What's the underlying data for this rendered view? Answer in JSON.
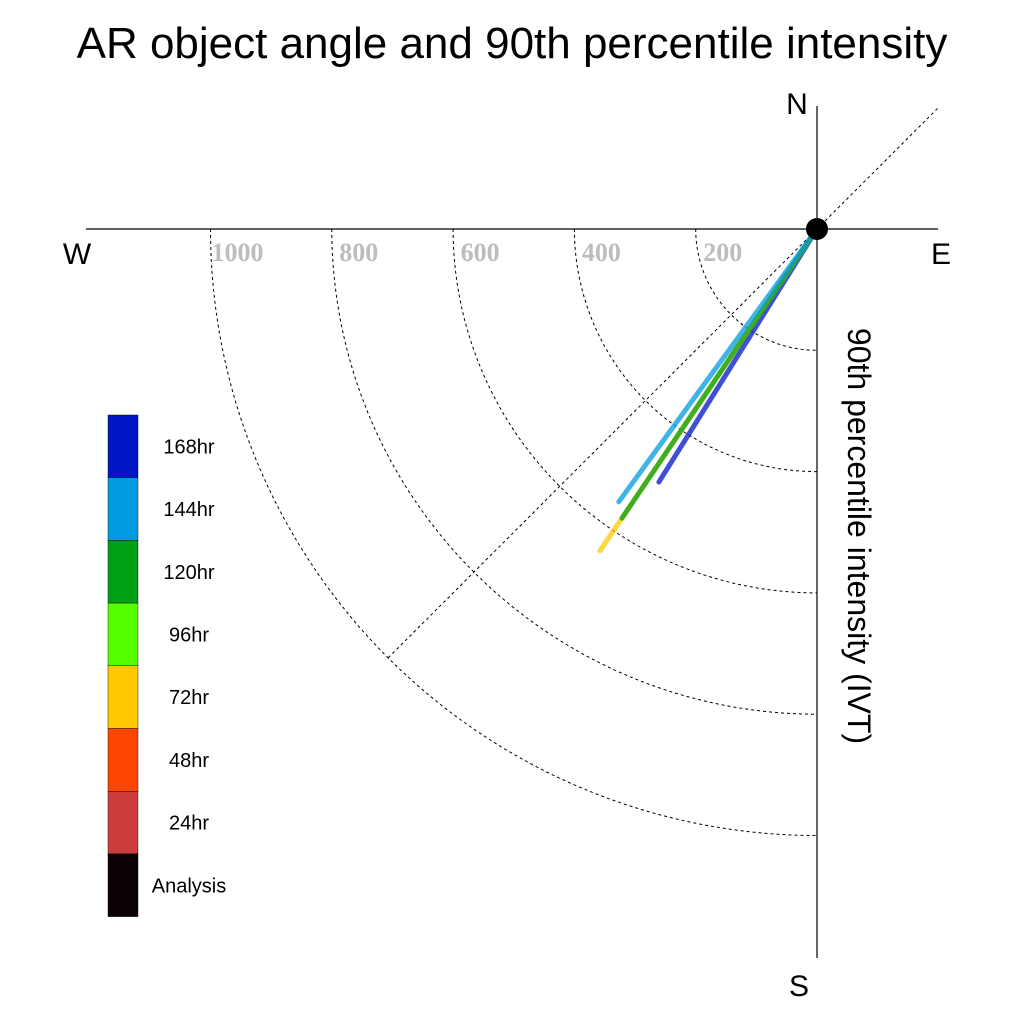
{
  "chart_data": {
    "type": "polar-vector",
    "title": "AR object angle and 90th percentile intensity",
    "ylabel": "90th percentile intensity (IVT)",
    "compass": {
      "north": "N",
      "south": "S",
      "east": "E",
      "west": "W"
    },
    "radial_ticks": [
      "200",
      "400",
      "600",
      "800",
      "1000"
    ],
    "radial_tick_values": [
      200,
      400,
      600,
      800,
      1000
    ],
    "rlim": [
      0,
      1200
    ],
    "grid": true,
    "legend_position": "left",
    "legend": [
      {
        "label": "168hr",
        "color": "#0014c8"
      },
      {
        "label": "144hr",
        "color": "#009be0"
      },
      {
        "label": "120hr",
        "color": "#00a014"
      },
      {
        "label": "96hr",
        "color": "#55ff00"
      },
      {
        "label": "72hr",
        "color": "#ffc800"
      },
      {
        "label": "48hr",
        "color": "#ff4600"
      },
      {
        "label": "24hr",
        "color": "#cd3c3c"
      },
      {
        "label": "Analysis",
        "color": "#0a0005"
      }
    ],
    "series": [
      {
        "name": "168hr",
        "angle_deg": 212,
        "intensity": 492,
        "color": "#0014c8"
      },
      {
        "name": "72hr",
        "angle_deg": 214,
        "intensity": 640,
        "color": "#ffc800"
      },
      {
        "name": "120hr",
        "angle_deg": 214,
        "intensity": 575,
        "color": "#00a014"
      },
      {
        "name": "144hr",
        "angle_deg": 216,
        "intensity": 556,
        "color": "#009be0"
      }
    ]
  }
}
